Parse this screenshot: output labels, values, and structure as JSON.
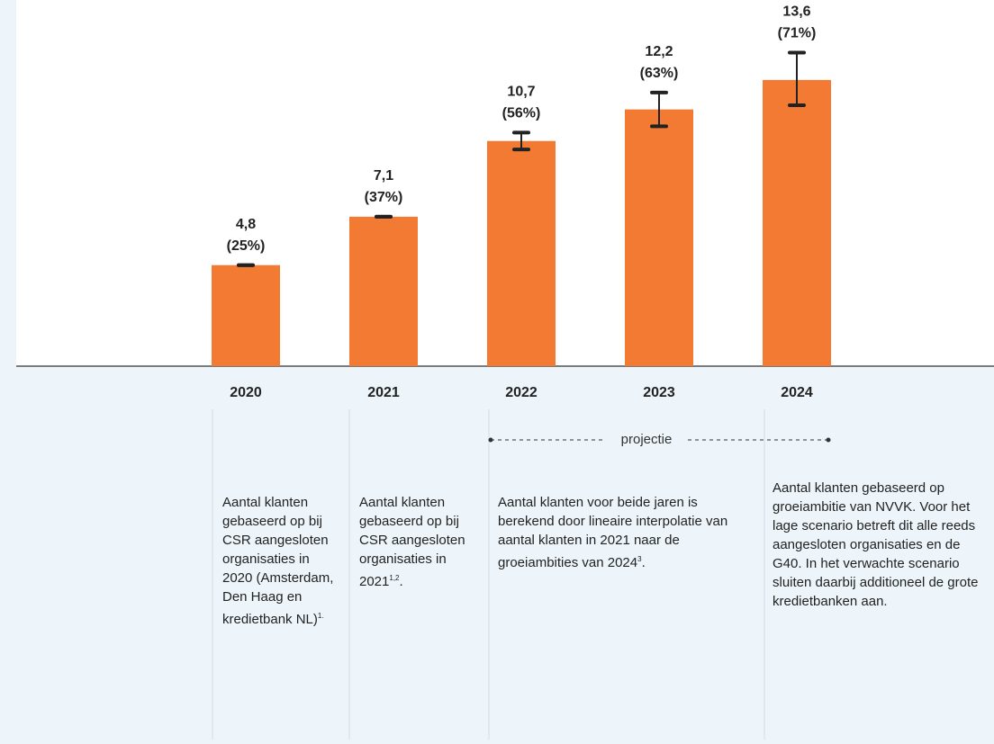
{
  "chart_data": {
    "type": "bar",
    "categories": [
      "2020",
      "2021",
      "2022",
      "2023",
      "2024"
    ],
    "values": [
      4.8,
      7.1,
      10.7,
      12.2,
      13.6
    ],
    "value_labels": [
      "4,8",
      "7,1",
      "10,7",
      "12,2",
      "13,6"
    ],
    "share_labels": [
      "(25%)",
      "(37%)",
      "(56%)",
      "(63%)",
      "(71%)"
    ],
    "error_low": [
      4.8,
      7.1,
      10.3,
      11.4,
      12.4
    ],
    "error_high": [
      4.8,
      7.1,
      11.1,
      13.0,
      14.9
    ],
    "color": "#f37a33",
    "ylim": [
      0,
      17.4
    ],
    "projection_label": "projectie",
    "annotations": [
      {
        "text": "Aantal klanten gebaseerd op bij CSR aangesloten organisaties in 2020 (Amsterdam, Den Haag en kredietbank NL)",
        "sup": "1."
      },
      {
        "text": "Aantal klanten gebaseerd op bij CSR aangesloten organisaties in 2021",
        "sup": "1,2",
        "after": "."
      },
      {
        "text": "Aantal klanten voor beide jaren is berekend door lineaire interpolatie van aantal klanten in 2021 naar de groeiambities van 2024",
        "sup": "3",
        "after": "."
      },
      {
        "text": "Aantal klanten gebaseerd op groeiambitie van NVVK. Voor het lage scenario betreft dit alle reeds aangesloten organisaties en de G40. In het verwachte scenario sluiten daarbij additioneel de grote kredietbanken aan."
      }
    ]
  }
}
